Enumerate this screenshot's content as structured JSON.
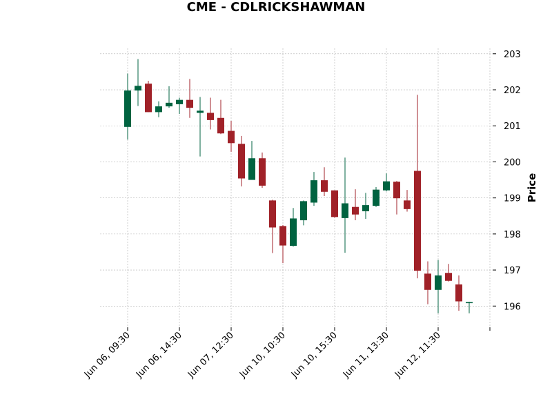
{
  "chart_data": {
    "type": "candlestick",
    "title": "CME - CDLRICKSHAWMAN",
    "xlabel": "",
    "ylabel": "Price",
    "ylim": [
      195.45,
      203.15
    ],
    "yticks": [
      196,
      197,
      198,
      199,
      200,
      201,
      202,
      203
    ],
    "xtick_labels": [
      "Jun 06, 09:30",
      "Jun 06, 14:30",
      "Jun 07, 12:30",
      "Jun 10, 10:30",
      "Jun 10, 15:30",
      "Jun 11, 13:30",
      "Jun 12, 11:30"
    ],
    "xtick_positions": [
      0,
      5,
      10,
      15,
      20,
      25,
      30,
      35
    ],
    "grid": true,
    "colors": {
      "up": "#006340",
      "down": "#a02128",
      "grid": "#b0b0b0"
    },
    "candles": [
      {
        "open": 200.97,
        "high": 202.45,
        "low": 200.62,
        "close": 201.98
      },
      {
        "open": 201.98,
        "high": 202.85,
        "low": 201.55,
        "close": 202.11
      },
      {
        "open": 202.17,
        "high": 202.25,
        "low": 201.38,
        "close": 201.38
      },
      {
        "open": 201.38,
        "high": 201.68,
        "low": 201.24,
        "close": 201.54
      },
      {
        "open": 201.54,
        "high": 202.1,
        "low": 201.5,
        "close": 201.64
      },
      {
        "open": 201.6,
        "high": 201.78,
        "low": 201.33,
        "close": 201.72
      },
      {
        "open": 201.72,
        "high": 202.3,
        "low": 201.22,
        "close": 201.5
      },
      {
        "open": 201.36,
        "high": 201.8,
        "low": 200.15,
        "close": 201.42
      },
      {
        "open": 201.36,
        "high": 201.78,
        "low": 200.9,
        "close": 201.16
      },
      {
        "open": 201.22,
        "high": 201.72,
        "low": 200.77,
        "close": 200.79
      },
      {
        "open": 200.86,
        "high": 201.14,
        "low": 200.28,
        "close": 200.52
      },
      {
        "open": 200.5,
        "high": 200.72,
        "low": 199.32,
        "close": 199.54
      },
      {
        "open": 199.5,
        "high": 200.58,
        "low": 199.5,
        "close": 200.1
      },
      {
        "open": 200.1,
        "high": 200.26,
        "low": 199.28,
        "close": 199.34
      },
      {
        "open": 198.93,
        "high": 198.95,
        "low": 197.47,
        "close": 198.18
      },
      {
        "open": 198.22,
        "high": 198.25,
        "low": 197.19,
        "close": 197.68
      },
      {
        "open": 197.67,
        "high": 198.72,
        "low": 197.65,
        "close": 198.43
      },
      {
        "open": 198.38,
        "high": 198.93,
        "low": 198.24,
        "close": 198.91
      },
      {
        "open": 198.87,
        "high": 199.72,
        "low": 198.78,
        "close": 199.49
      },
      {
        "open": 199.49,
        "high": 199.85,
        "low": 199.05,
        "close": 199.17
      },
      {
        "open": 199.21,
        "high": 199.21,
        "low": 198.45,
        "close": 198.47
      },
      {
        "open": 198.44,
        "high": 200.12,
        "low": 197.48,
        "close": 198.85
      },
      {
        "open": 198.75,
        "high": 199.24,
        "low": 198.38,
        "close": 198.54
      },
      {
        "open": 198.63,
        "high": 199.14,
        "low": 198.42,
        "close": 198.8
      },
      {
        "open": 198.78,
        "high": 199.3,
        "low": 198.75,
        "close": 199.23
      },
      {
        "open": 199.21,
        "high": 199.68,
        "low": 199.18,
        "close": 199.46
      },
      {
        "open": 199.45,
        "high": 199.47,
        "low": 198.54,
        "close": 198.99
      },
      {
        "open": 198.93,
        "high": 199.22,
        "low": 198.62,
        "close": 198.69
      },
      {
        "open": 199.75,
        "high": 201.86,
        "low": 196.77,
        "close": 196.98
      },
      {
        "open": 196.9,
        "high": 197.24,
        "low": 196.05,
        "close": 196.45
      },
      {
        "open": 196.45,
        "high": 197.28,
        "low": 195.8,
        "close": 196.85
      },
      {
        "open": 196.92,
        "high": 197.17,
        "low": 196.68,
        "close": 196.7
      },
      {
        "open": 196.6,
        "high": 196.85,
        "low": 195.87,
        "close": 196.13
      },
      {
        "open": 196.08,
        "high": 196.12,
        "low": 195.8,
        "close": 196.11
      }
    ]
  }
}
